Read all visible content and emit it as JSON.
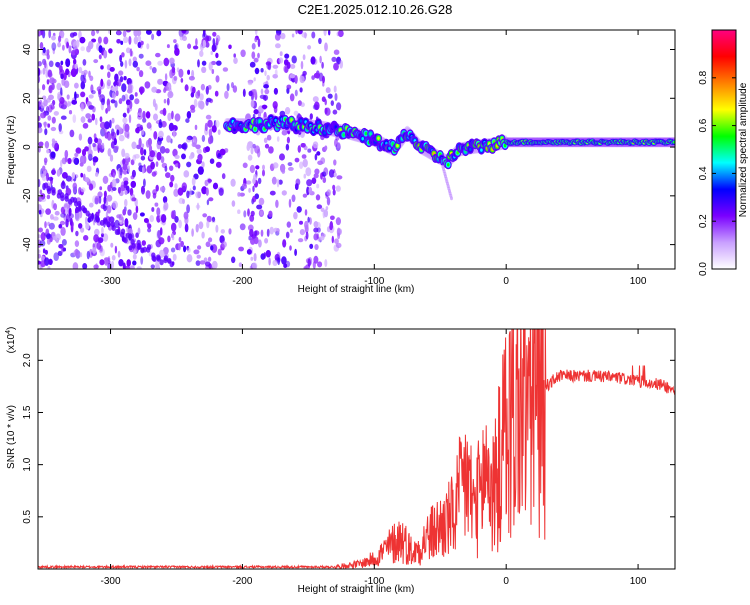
{
  "title": "C2E1.2025.012.10.26.G28",
  "top_chart": {
    "type": "heatmap",
    "xlabel": "Height of straight line (km)",
    "ylabel": "Frequency (Hz)",
    "xlim": [
      -355,
      128
    ],
    "ylim": [
      -50,
      48
    ],
    "xticks": [
      -300,
      -200,
      -100,
      0,
      100
    ],
    "yticks": [
      -40,
      -20,
      0,
      20,
      40
    ],
    "colorbar": {
      "label": "Normalized spectral amplitude",
      "range": [
        0,
        1
      ],
      "ticks": [
        0.0,
        0.2,
        0.4,
        0.6,
        0.8
      ],
      "tick_labels": [
        "0.0",
        "0.2",
        "0.4",
        "0.6",
        "0.8"
      ],
      "stops": [
        "#ffffff",
        "#c9a0ff",
        "#7a00ff",
        "#0000ff",
        "#00ffff",
        "#00ff00",
        "#ffff00",
        "#ff8000",
        "#ff0000",
        "#ff0080"
      ]
    },
    "ridge": {
      "x": [
        -212,
        -190,
        -175,
        -160,
        -140,
        -120,
        -100,
        -85,
        -75,
        -65,
        -55,
        -45,
        -35,
        -25,
        -10,
        0,
        20,
        50,
        80,
        100,
        128
      ],
      "y": [
        9,
        9,
        10,
        9,
        8,
        6,
        3,
        -1,
        6,
        0,
        -3,
        -6,
        -1,
        0,
        1,
        2,
        2,
        2,
        2,
        2,
        2
      ]
    },
    "noise_region_km": [
      -355,
      -125
    ]
  },
  "chart_data": {
    "type": "line",
    "title": "",
    "xlabel": "Height of straight line (km)",
    "ylabel": "SNR (10 * v/v)",
    "scale_label": "(x10",
    "scale_exp": "4",
    "color": "#ee3333",
    "xlim": [
      -355,
      128
    ],
    "ylim": [
      0,
      2.3
    ],
    "xticks": [
      -300,
      -200,
      -100,
      0,
      100
    ],
    "yticks": [
      0.5,
      1.0,
      1.5,
      2.0
    ],
    "ytick_labels": [
      "0.5",
      "1.0",
      "1.5",
      "2.0"
    ],
    "x": [
      -355,
      -300,
      -200,
      -130,
      -110,
      -100,
      -90,
      -80,
      -70,
      -60,
      -50,
      -40,
      -30,
      -25,
      -20,
      -15,
      -10,
      -5,
      0,
      10,
      20,
      30,
      40,
      60,
      80,
      100,
      110,
      120,
      128
    ],
    "y": [
      0.02,
      0.02,
      0.02,
      0.02,
      0.05,
      0.1,
      0.2,
      0.3,
      0.15,
      0.3,
      0.4,
      0.5,
      0.9,
      0.6,
      0.7,
      1.0,
      0.7,
      1.0,
      1.35,
      1.55,
      1.65,
      1.75,
      1.85,
      1.85,
      1.84,
      1.8,
      1.78,
      1.76,
      1.7
    ]
  }
}
